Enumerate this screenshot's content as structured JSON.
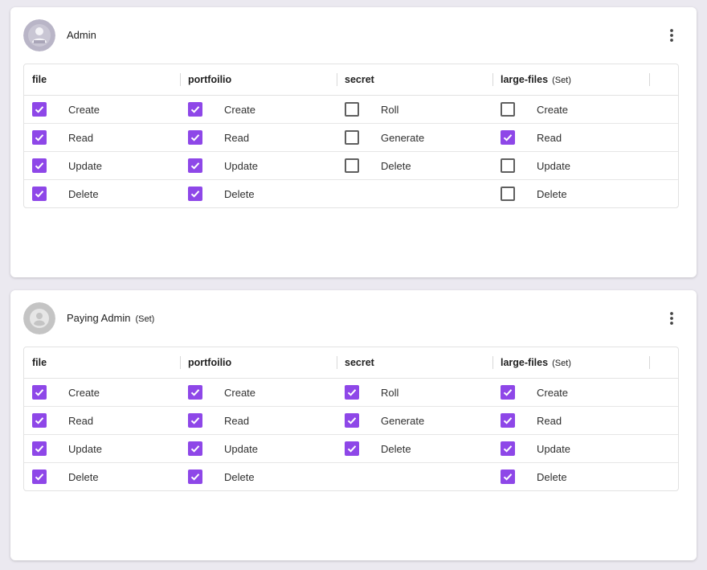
{
  "accent_color": "#8e47e8",
  "cards": [
    {
      "title": "Admin",
      "set_tag": "",
      "avatar_icon": "user-icon",
      "menu_icon": "more-vertical-icon",
      "columns": [
        {
          "name": "file",
          "set_tag": ""
        },
        {
          "name": "portfoilio",
          "set_tag": ""
        },
        {
          "name": "secret",
          "set_tag": ""
        },
        {
          "name": "large-files",
          "set_tag": "(Set)"
        }
      ],
      "rows": [
        [
          {
            "label": "Create",
            "checked": true
          },
          {
            "label": "Create",
            "checked": true
          },
          {
            "label": "Roll",
            "checked": false
          },
          {
            "label": "Create",
            "checked": false
          }
        ],
        [
          {
            "label": "Read",
            "checked": true
          },
          {
            "label": "Read",
            "checked": true
          },
          {
            "label": "Generate",
            "checked": false
          },
          {
            "label": "Read",
            "checked": true
          }
        ],
        [
          {
            "label": "Update",
            "checked": true
          },
          {
            "label": "Update",
            "checked": true
          },
          {
            "label": "Delete",
            "checked": false
          },
          {
            "label": "Update",
            "checked": false
          }
        ],
        [
          {
            "label": "Delete",
            "checked": true
          },
          {
            "label": "Delete",
            "checked": true
          },
          null,
          {
            "label": "Delete",
            "checked": false
          }
        ]
      ]
    },
    {
      "title": "Paying Admin",
      "set_tag": "(Set)",
      "avatar_icon": "account-circle-icon",
      "menu_icon": "more-vertical-icon",
      "columns": [
        {
          "name": "file",
          "set_tag": ""
        },
        {
          "name": "portfoilio",
          "set_tag": ""
        },
        {
          "name": "secret",
          "set_tag": ""
        },
        {
          "name": "large-files",
          "set_tag": "(Set)"
        }
      ],
      "rows": [
        [
          {
            "label": "Create",
            "checked": true
          },
          {
            "label": "Create",
            "checked": true
          },
          {
            "label": "Roll",
            "checked": true
          },
          {
            "label": "Create",
            "checked": true
          }
        ],
        [
          {
            "label": "Read",
            "checked": true
          },
          {
            "label": "Read",
            "checked": true
          },
          {
            "label": "Generate",
            "checked": true
          },
          {
            "label": "Read",
            "checked": true
          }
        ],
        [
          {
            "label": "Update",
            "checked": true
          },
          {
            "label": "Update",
            "checked": true
          },
          {
            "label": "Delete",
            "checked": true
          },
          {
            "label": "Update",
            "checked": true
          }
        ],
        [
          {
            "label": "Delete",
            "checked": true
          },
          {
            "label": "Delete",
            "checked": true
          },
          null,
          {
            "label": "Delete",
            "checked": true
          }
        ]
      ]
    }
  ]
}
